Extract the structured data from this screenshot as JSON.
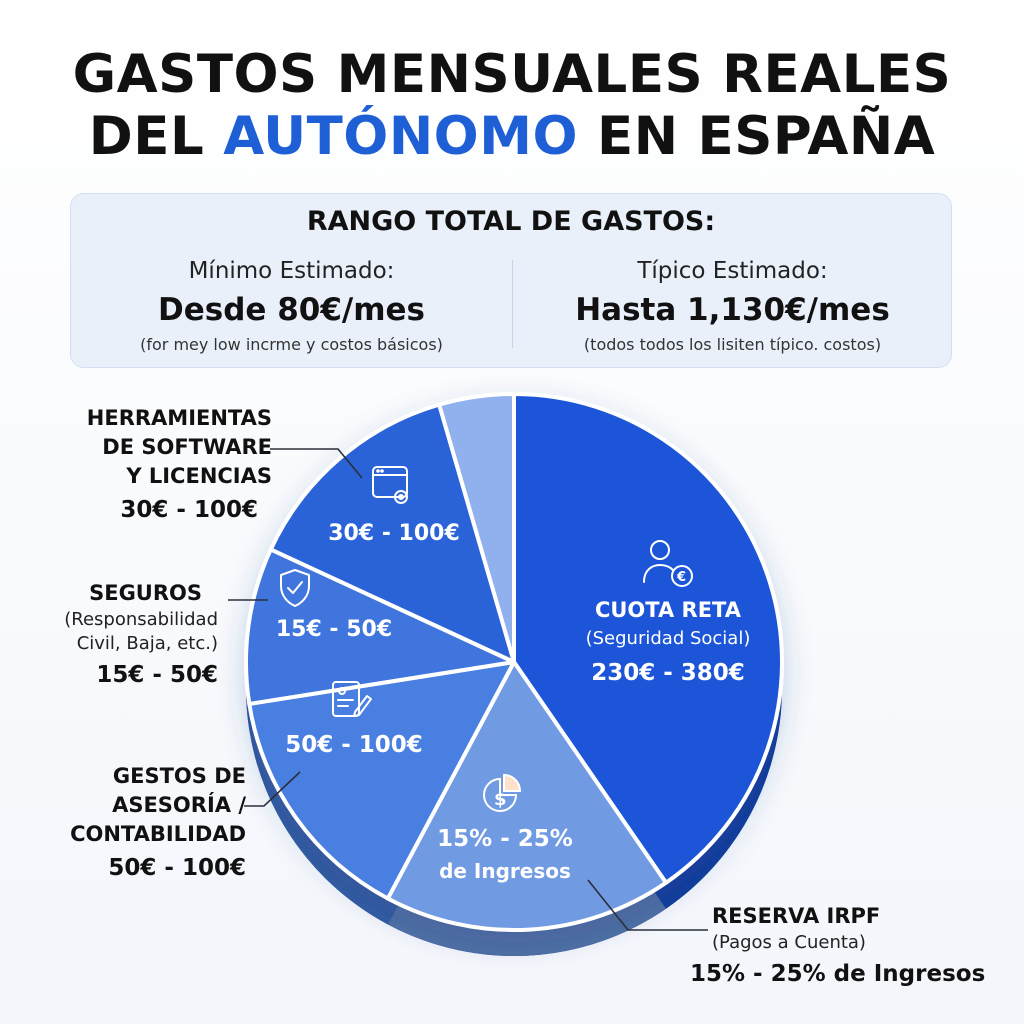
{
  "title": {
    "line1": "GASTOS MENSUALES REALES",
    "line2_pre": "DEL",
    "line2_accent": "AUTÓNOMO",
    "line2_post": "EN ESPAÑA",
    "accent_color": "#1f5fd6"
  },
  "range": {
    "title": "RANGO TOTAL DE GASTOS:",
    "min": {
      "label": "Mínimo Estimado:",
      "value": "Desde 80€/mes",
      "note": "(for mey low incrme y costos básicos)"
    },
    "typical": {
      "label": "Típico Estimado:",
      "value": "Hasta 1,130€/mes",
      "note": "(todos todos los lisiten típico. costos)"
    }
  },
  "chart_data": {
    "type": "pie",
    "slices": [
      {
        "key": "cuota",
        "label": "CUOTA RETA",
        "sublabel": "(Seguridad Social)",
        "range": "230€ - 380€",
        "share": 0.404,
        "icon": "person-euro-icon",
        "color": "#1b55d8"
      },
      {
        "key": "irpf",
        "inner_line1": "15% - 25%",
        "inner_line2": "de Ingresos",
        "label": "RESERVA IRPF",
        "sublabel": "(Pagos a Cuenta)",
        "range": "15% - 25% de Ingresos",
        "share": 0.174,
        "icon": "dollar-chart-icon",
        "color": "#6f9ae2"
      },
      {
        "key": "asesoria",
        "inner": "50€ - 100€",
        "label_lines": [
          "GESTOS DE",
          "ASESORÍA /",
          "CONTABILIDAD"
        ],
        "range": "50€ - 100€",
        "share": 0.147,
        "icon": "document-pen-icon",
        "color": "#4a7fe0"
      },
      {
        "key": "seguros",
        "inner": "15€ - 50€",
        "label": "SEGUROS",
        "sublabel_lines": [
          "(Responsabilidad",
          "Civil, Baja, etc.)"
        ],
        "range": "15€ - 50€",
        "share": 0.094,
        "icon": "shield-check-icon",
        "color": "#3f74de"
      },
      {
        "key": "software",
        "inner": "30€ - 100€",
        "label_lines": [
          "HERRAMIENTAS",
          "DE SOFTWARE",
          "Y LICENCIAS"
        ],
        "range": "30€ - 100€",
        "share": 0.136,
        "icon": "window-gear-icon",
        "color": "#2c63d8"
      },
      {
        "key": "otros",
        "share": 0.045,
        "color": "#91b0ee"
      }
    ]
  }
}
